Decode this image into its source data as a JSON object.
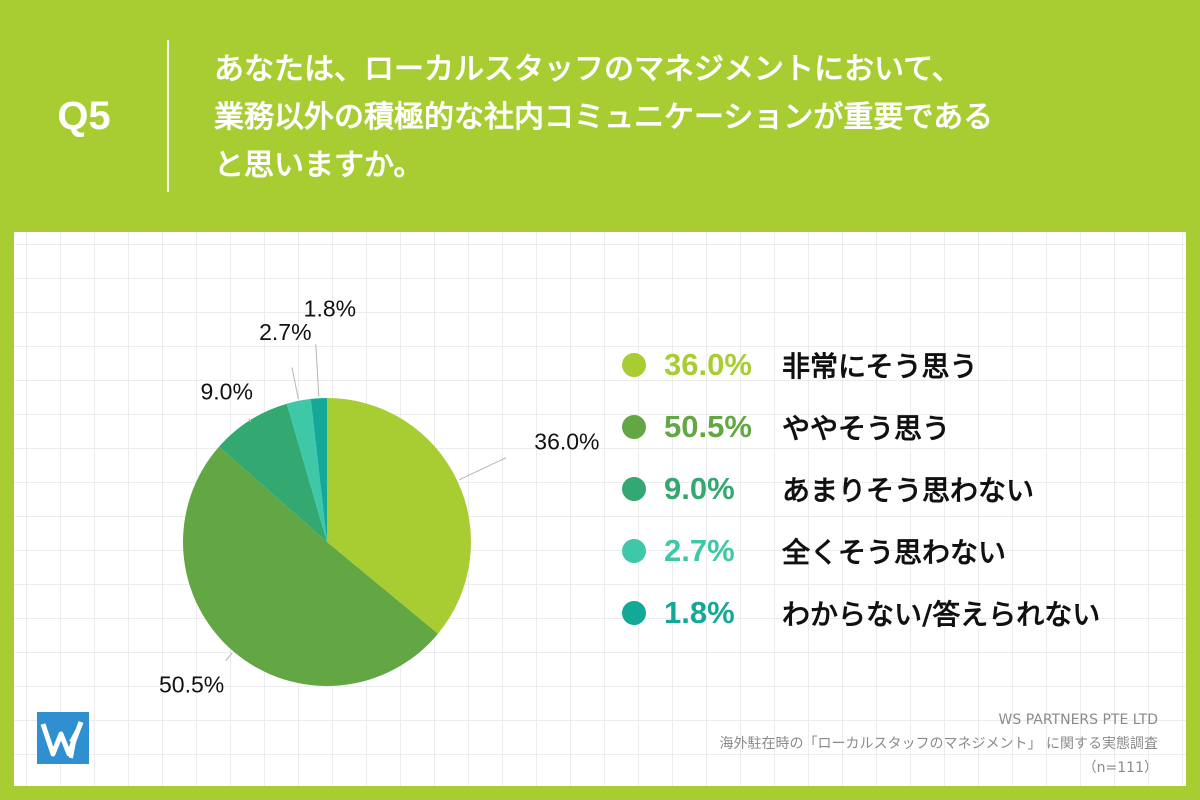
{
  "header": {
    "q_label": "Q5",
    "question_lines": [
      "あなたは、ローカルスタッフのマネジメントにおいて、",
      "業務以外の積極的な社内コミュニケーションが重要である",
      "と思いますか。"
    ]
  },
  "chart_data": {
    "type": "pie",
    "title": "",
    "slices": [
      {
        "label": "非常にそう思う",
        "value": 36.0,
        "display": "36.0%",
        "color": "#a8cd32"
      },
      {
        "label": "ややそう思う",
        "value": 50.5,
        "display": "50.5%",
        "color": "#62a744"
      },
      {
        "label": "あまりそう思わない",
        "value": 9.0,
        "display": "9.0%",
        "color": "#33a870"
      },
      {
        "label": "全くそう思わない",
        "value": 2.7,
        "display": "2.7%",
        "color": "#3ec8a8"
      },
      {
        "label": "わからない/答えられない",
        "value": 1.8,
        "display": "1.8%",
        "color": "#14a898"
      }
    ],
    "legend_position": "right"
  },
  "footer": {
    "company": "WS PARTNERS PTE LTD",
    "survey": "海外駐在時の「ローカルスタッフのマネジメント」 に関する実態調査",
    "sample": "（n=111）"
  }
}
